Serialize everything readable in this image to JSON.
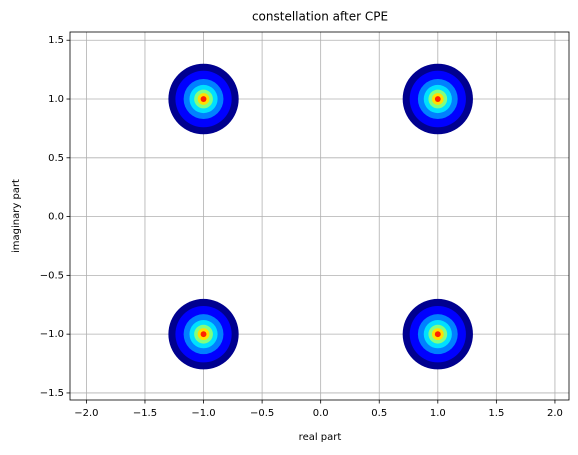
{
  "chart_data": {
    "type": "density-clusters",
    "title": "constellation after CPE",
    "x_label": "real part",
    "y_label": "imaginary part",
    "xlim": [
      -2.14,
      2.12
    ],
    "ylim": [
      -1.56,
      1.57
    ],
    "xticks": [
      {
        "value": -2,
        "label": "−2.0"
      },
      {
        "value": -1.5,
        "label": "−1.5"
      },
      {
        "value": -1,
        "label": "−1.0"
      },
      {
        "value": -0.5,
        "label": "−0.5"
      },
      {
        "value": 0,
        "label": "0.0"
      },
      {
        "value": 0.5,
        "label": "0.5"
      },
      {
        "value": 1,
        "label": "1.0"
      },
      {
        "value": 1.5,
        "label": "1.5"
      },
      {
        "value": 2,
        "label": "2.0"
      }
    ],
    "yticks": [
      {
        "value": -1.5,
        "label": "−1.5"
      },
      {
        "value": -1,
        "label": "−1.0"
      },
      {
        "value": -0.5,
        "label": "−0.5"
      },
      {
        "value": 0,
        "label": "0.0"
      },
      {
        "value": 0.5,
        "label": "0.5"
      },
      {
        "value": 1,
        "label": "1.0"
      },
      {
        "value": 1.5,
        "label": "1.5"
      }
    ],
    "grid": true,
    "clusters": [
      {
        "x": -1,
        "y": 1
      },
      {
        "x": 1,
        "y": 1
      },
      {
        "x": -1,
        "y": -1
      },
      {
        "x": 1,
        "y": -1
      }
    ],
    "rings": [
      {
        "radius": 0.3,
        "color": "#00008f"
      },
      {
        "radius": 0.24,
        "color": "#0000ff"
      },
      {
        "radius": 0.17,
        "color": "#0080ff"
      },
      {
        "radius": 0.12,
        "color": "#00e0ff"
      },
      {
        "radius": 0.08,
        "color": "#80ff80"
      },
      {
        "radius": 0.05,
        "color": "#ffe000"
      },
      {
        "radius": 0.025,
        "color": "#ff2000"
      }
    ]
  }
}
